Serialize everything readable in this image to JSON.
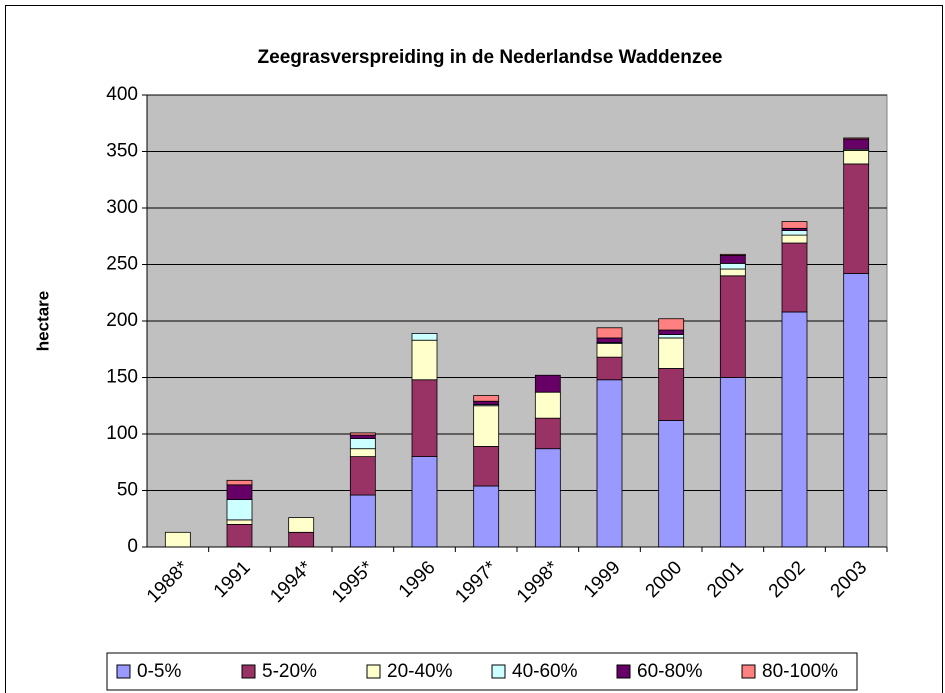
{
  "chart_data": {
    "type": "stacked_bar",
    "title": "Zeegrasverspreiding in de Nederlandse Waddenzee",
    "y_label": "hectare",
    "categories": [
      "1988*",
      "1991",
      "1994*",
      "1995*",
      "1996",
      "1997*",
      "1998*",
      "1999",
      "2000",
      "2001",
      "2002",
      "2003"
    ],
    "series": [
      {
        "name": "0-5%",
        "color": "#9999ff",
        "values": [
          0,
          0,
          0,
          46,
          80,
          54,
          87,
          148,
          112,
          150,
          208,
          242
        ]
      },
      {
        "name": "5-20%",
        "color": "#993366",
        "values": [
          0,
          20,
          13,
          34,
          68,
          35,
          27,
          20,
          46,
          90,
          61,
          97
        ]
      },
      {
        "name": "20-40%",
        "color": "#ffffcc",
        "values": [
          13,
          4,
          13,
          7,
          35,
          36,
          23,
          12,
          27,
          6,
          7,
          12
        ]
      },
      {
        "name": "40-60%",
        "color": "#ccffff",
        "values": [
          0,
          18,
          0,
          9,
          6,
          1,
          0,
          1,
          3,
          5,
          4,
          1
        ]
      },
      {
        "name": "60-80%",
        "color": "#660066",
        "values": [
          0,
          13,
          0,
          3,
          0,
          3,
          15,
          4,
          4,
          7,
          2,
          9
        ]
      },
      {
        "name": "80-100%",
        "color": "#ff8080",
        "values": [
          0,
          4,
          0,
          2,
          0,
          5,
          0,
          9,
          10,
          1,
          6,
          1
        ]
      }
    ],
    "ylim": [
      0,
      400
    ],
    "yticks": [
      0,
      50,
      100,
      150,
      200,
      250,
      300,
      350,
      400
    ],
    "grid": true,
    "plot_background": "#c0c0c0",
    "legend": "bottom"
  }
}
